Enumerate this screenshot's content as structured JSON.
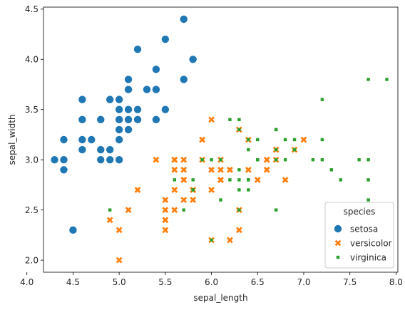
{
  "chart_data": {
    "type": "scatter",
    "xlabel": "sepal_length",
    "ylabel": "sepal_width",
    "xlim": [
      4.18,
      8.02
    ],
    "ylim": [
      1.88,
      4.52
    ],
    "xticks": [
      "4.0",
      "4.5",
      "5.0",
      "5.5",
      "6.0",
      "6.5",
      "7.0",
      "7.5",
      "8.0"
    ],
    "yticks": [
      "2.0",
      "2.5",
      "3.0",
      "3.5",
      "4.0",
      "4.5"
    ],
    "grid": false,
    "legend": {
      "title": "species",
      "position": "lower-right"
    },
    "series": [
      {
        "name": "setosa",
        "color": "#1f77b4",
        "marker": "circle",
        "points": [
          [
            5.1,
            3.5
          ],
          [
            4.9,
            3.0
          ],
          [
            4.7,
            3.2
          ],
          [
            4.6,
            3.1
          ],
          [
            5.0,
            3.6
          ],
          [
            5.4,
            3.9
          ],
          [
            4.6,
            3.4
          ],
          [
            5.0,
            3.4
          ],
          [
            4.4,
            2.9
          ],
          [
            4.9,
            3.1
          ],
          [
            5.4,
            3.7
          ],
          [
            4.8,
            3.4
          ],
          [
            4.8,
            3.0
          ],
          [
            4.3,
            3.0
          ],
          [
            5.8,
            4.0
          ],
          [
            5.7,
            4.4
          ],
          [
            5.4,
            3.9
          ],
          [
            5.1,
            3.5
          ],
          [
            5.7,
            3.8
          ],
          [
            5.1,
            3.8
          ],
          [
            5.4,
            3.4
          ],
          [
            5.1,
            3.7
          ],
          [
            4.6,
            3.6
          ],
          [
            5.1,
            3.3
          ],
          [
            4.8,
            3.4
          ],
          [
            5.0,
            3.0
          ],
          [
            5.0,
            3.4
          ],
          [
            5.2,
            3.5
          ],
          [
            5.2,
            3.4
          ],
          [
            4.7,
            3.2
          ],
          [
            4.8,
            3.1
          ],
          [
            5.4,
            3.4
          ],
          [
            5.2,
            4.1
          ],
          [
            5.5,
            4.2
          ],
          [
            4.9,
            3.1
          ],
          [
            5.0,
            3.2
          ],
          [
            5.5,
            3.5
          ],
          [
            4.9,
            3.6
          ],
          [
            4.4,
            3.0
          ],
          [
            5.1,
            3.4
          ],
          [
            5.0,
            3.5
          ],
          [
            4.5,
            2.3
          ],
          [
            4.4,
            3.2
          ],
          [
            5.0,
            3.5
          ],
          [
            5.1,
            3.8
          ],
          [
            4.8,
            3.0
          ],
          [
            5.1,
            3.8
          ],
          [
            4.6,
            3.2
          ],
          [
            5.3,
            3.7
          ],
          [
            5.0,
            3.3
          ]
        ]
      },
      {
        "name": "versicolor",
        "color": "#ff7f0e",
        "marker": "x",
        "points": [
          [
            7.0,
            3.2
          ],
          [
            6.4,
            3.2
          ],
          [
            6.9,
            3.1
          ],
          [
            5.5,
            2.3
          ],
          [
            6.5,
            2.8
          ],
          [
            5.7,
            2.8
          ],
          [
            6.3,
            3.3
          ],
          [
            4.9,
            2.4
          ],
          [
            6.6,
            2.9
          ],
          [
            5.2,
            2.7
          ],
          [
            5.0,
            2.0
          ],
          [
            5.9,
            3.0
          ],
          [
            6.0,
            2.2
          ],
          [
            6.1,
            2.9
          ],
          [
            5.6,
            2.9
          ],
          [
            6.7,
            3.1
          ],
          [
            5.6,
            3.0
          ],
          [
            5.8,
            2.7
          ],
          [
            6.2,
            2.2
          ],
          [
            5.6,
            2.5
          ],
          [
            5.9,
            3.2
          ],
          [
            6.1,
            2.8
          ],
          [
            6.3,
            2.5
          ],
          [
            6.1,
            2.8
          ],
          [
            6.4,
            2.9
          ],
          [
            6.6,
            3.0
          ],
          [
            6.8,
            2.8
          ],
          [
            6.7,
            3.0
          ],
          [
            6.0,
            2.9
          ],
          [
            5.7,
            2.6
          ],
          [
            5.5,
            2.4
          ],
          [
            5.5,
            2.4
          ],
          [
            5.8,
            2.7
          ],
          [
            6.0,
            2.7
          ],
          [
            5.4,
            3.0
          ],
          [
            6.0,
            3.4
          ],
          [
            6.7,
            3.1
          ],
          [
            6.3,
            2.3
          ],
          [
            5.6,
            3.0
          ],
          [
            5.5,
            2.5
          ],
          [
            5.5,
            2.6
          ],
          [
            6.1,
            3.0
          ],
          [
            5.8,
            2.6
          ],
          [
            5.0,
            2.3
          ],
          [
            5.6,
            2.7
          ],
          [
            5.7,
            3.0
          ],
          [
            5.7,
            2.9
          ],
          [
            6.2,
            2.9
          ],
          [
            5.1,
            2.5
          ],
          [
            5.7,
            2.8
          ]
        ]
      },
      {
        "name": "virginica",
        "color": "#2ca02c",
        "marker": "square",
        "points": [
          [
            6.3,
            3.3
          ],
          [
            5.8,
            2.7
          ],
          [
            7.1,
            3.0
          ],
          [
            6.3,
            2.9
          ],
          [
            6.5,
            3.0
          ],
          [
            7.6,
            3.0
          ],
          [
            4.9,
            2.5
          ],
          [
            7.3,
            2.9
          ],
          [
            6.7,
            2.5
          ],
          [
            7.2,
            3.6
          ],
          [
            6.5,
            3.2
          ],
          [
            6.4,
            2.7
          ],
          [
            6.8,
            3.0
          ],
          [
            5.7,
            2.5
          ],
          [
            5.8,
            2.8
          ],
          [
            6.4,
            3.2
          ],
          [
            6.5,
            3.0
          ],
          [
            7.7,
            3.8
          ],
          [
            7.7,
            2.6
          ],
          [
            6.0,
            2.2
          ],
          [
            6.9,
            3.2
          ],
          [
            5.6,
            2.8
          ],
          [
            7.7,
            2.8
          ],
          [
            6.3,
            2.7
          ],
          [
            6.7,
            3.3
          ],
          [
            7.2,
            3.2
          ],
          [
            6.2,
            2.8
          ],
          [
            6.1,
            3.0
          ],
          [
            6.4,
            2.8
          ],
          [
            7.2,
            3.0
          ],
          [
            7.4,
            2.8
          ],
          [
            7.9,
            3.8
          ],
          [
            6.4,
            2.8
          ],
          [
            6.3,
            2.8
          ],
          [
            6.1,
            2.6
          ],
          [
            7.7,
            3.0
          ],
          [
            6.3,
            3.4
          ],
          [
            6.4,
            3.1
          ],
          [
            6.0,
            3.0
          ],
          [
            6.9,
            3.1
          ],
          [
            6.7,
            3.1
          ],
          [
            6.9,
            3.1
          ],
          [
            5.8,
            2.7
          ],
          [
            6.8,
            3.2
          ],
          [
            6.7,
            3.3
          ],
          [
            6.7,
            3.0
          ],
          [
            6.3,
            2.5
          ],
          [
            6.5,
            3.0
          ],
          [
            6.2,
            3.4
          ],
          [
            5.9,
            3.0
          ]
        ]
      }
    ]
  }
}
